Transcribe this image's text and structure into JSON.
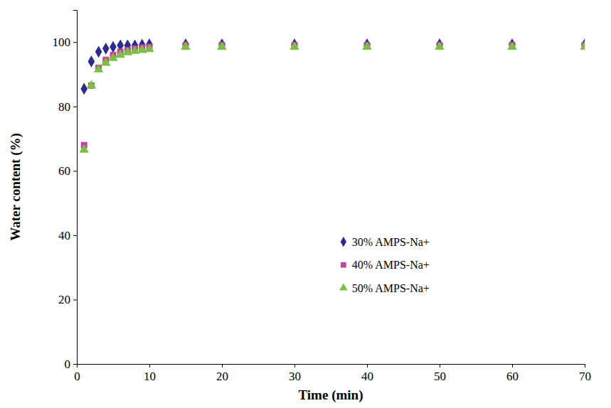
{
  "chart_data": {
    "type": "scatter",
    "x_label": "Time (min)",
    "y_label": "Water content (%)",
    "x": [
      1,
      2,
      3,
      4,
      5,
      6,
      7,
      8,
      9,
      10,
      15,
      20,
      30,
      40,
      50,
      60,
      70
    ],
    "series": [
      {
        "name": "30% AMPS-Na+",
        "color": "#2b2b8c",
        "marker": "diamond",
        "values": [
          85.5,
          94,
          97,
          98,
          98.5,
          99,
          99,
          99,
          99.2,
          99.3,
          99.3,
          99.3,
          99.3,
          99.3,
          99.3,
          99.3,
          99.3
        ]
      },
      {
        "name": "40% AMPS-Na+",
        "color": "#c0449a",
        "marker": "square",
        "values": [
          68,
          86.5,
          92,
          94.5,
          96,
          97,
          97.5,
          98,
          98.3,
          98.5,
          99,
          99,
          99,
          99,
          99,
          99,
          99
        ]
      },
      {
        "name": "50% AMPS-Na+",
        "color": "#7ac143",
        "marker": "triangle",
        "values": [
          66.5,
          86.5,
          91.5,
          93.5,
          95,
          96,
          96.8,
          97.2,
          97.5,
          97.8,
          98.5,
          98.5,
          98.5,
          98.5,
          98.5,
          98.5,
          98.5
        ]
      }
    ],
    "xlim": [
      0,
      70
    ],
    "xticks": [
      0,
      10,
      20,
      30,
      40,
      50,
      60,
      70
    ],
    "ylim": [
      0,
      110
    ],
    "yticks": [
      0,
      20,
      40,
      60,
      80,
      100
    ],
    "grid": false,
    "legend": "right"
  }
}
